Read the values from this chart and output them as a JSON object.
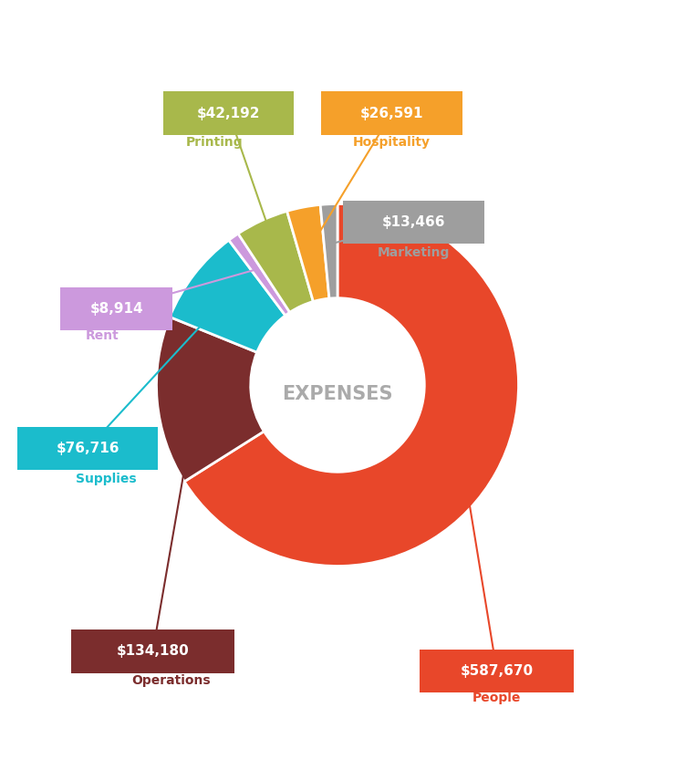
{
  "categories": [
    "People",
    "Operations",
    "Supplies",
    "Rent",
    "Printing",
    "Hospitality",
    "Marketing"
  ],
  "values": [
    587670,
    134180,
    76716,
    8914,
    42192,
    26591,
    13466
  ],
  "colors": [
    "#E8472A",
    "#7B2D2D",
    "#1BBCCC",
    "#CC99DD",
    "#A8B84B",
    "#F5A02A",
    "#9E9E9E"
  ],
  "amounts": [
    "$587,670",
    "$134,180",
    "$76,716",
    "$8,914",
    "$42,192",
    "$26,591",
    "$13,466"
  ],
  "center_text": "EXPENSES",
  "center_text_color": "#AAAAAA",
  "background_color": "#FFFFFF",
  "start_angle": 90
}
